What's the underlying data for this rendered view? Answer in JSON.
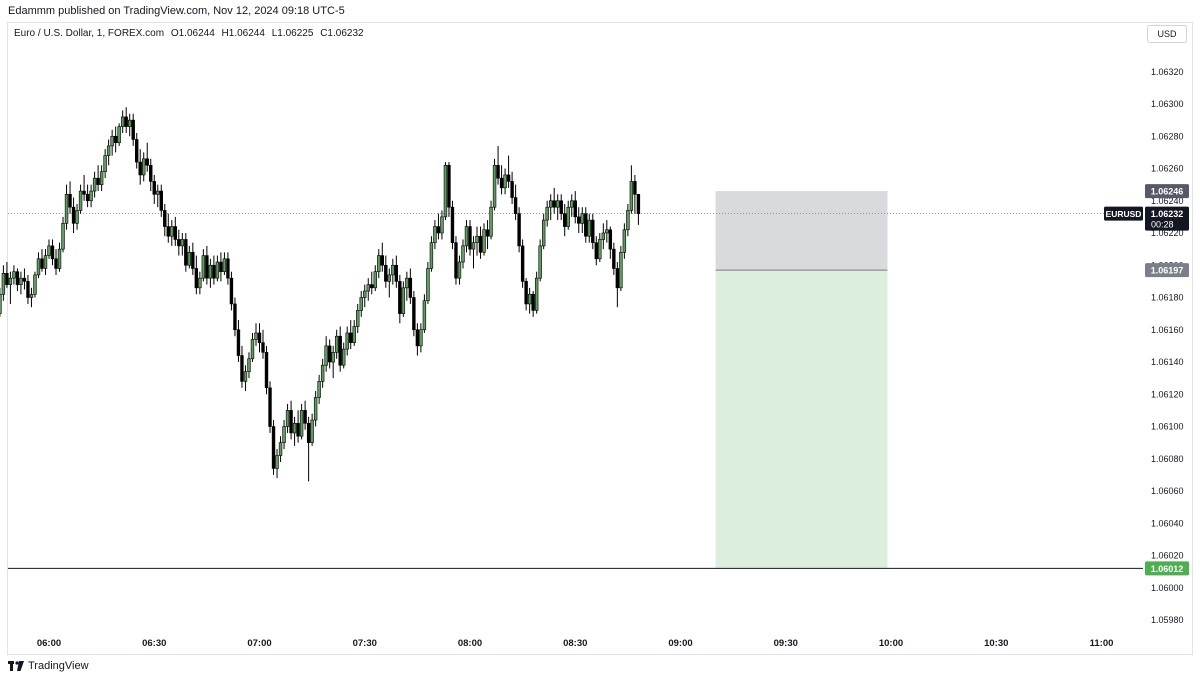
{
  "header": {
    "publisher": "Edammm published on TradingView.com, Nov 12, 2024 09:18 UTC-5"
  },
  "legend": {
    "symbol": "Euro / U.S. Dollar, 1, FOREX.com",
    "o": "O1.06244",
    "h": "H1.06244",
    "l": "L1.06225",
    "c": "C1.06232"
  },
  "currency_button": "USD",
  "brand": {
    "name": "TradingView"
  },
  "chart_data": {
    "type": "candlestick",
    "symbol": "EURUSD",
    "y_ticks": [
      "1.06320",
      "1.06300",
      "1.06280",
      "1.06260",
      "1.06240",
      "1.06220",
      "1.06200",
      "1.06180",
      "1.06160",
      "1.06140",
      "1.06120",
      "1.06100",
      "1.06080",
      "1.06060",
      "1.06040",
      "1.06020",
      "1.06000",
      "1.05980"
    ],
    "x_ticks": [
      "06:00",
      "06:30",
      "07:00",
      "07:30",
      "08:00",
      "08:30",
      "09:00",
      "09:30",
      "10:00",
      "10:30",
      "11:00"
    ],
    "price_labels": {
      "entry": "1.06197",
      "stop": "1.06246",
      "target": "1.06012",
      "last": "1.06232",
      "countdown": "00:28"
    },
    "short_position": {
      "entry": 1.06197,
      "stop": 1.06246,
      "target": 1.06012,
      "start_time": "09:10",
      "end_time": "09:59"
    },
    "candles_start_time": "05:45",
    "candles": [
      [
        1.06172,
        1.06178,
        1.06166,
        1.0617
      ],
      [
        1.0617,
        1.06186,
        1.06168,
        1.06182
      ],
      [
        1.06182,
        1.062,
        1.06178,
        1.06195
      ],
      [
        1.06195,
        1.06202,
        1.06186,
        1.06188
      ],
      [
        1.06188,
        1.06196,
        1.06176,
        1.06192
      ],
      [
        1.06192,
        1.062,
        1.06188,
        1.06196
      ],
      [
        1.06196,
        1.06198,
        1.06184,
        1.06188
      ],
      [
        1.06188,
        1.06196,
        1.06182,
        1.06192
      ],
      [
        1.06192,
        1.06198,
        1.06185,
        1.0619
      ],
      [
        1.0619,
        1.06194,
        1.06176,
        1.0618
      ],
      [
        1.0618,
        1.06186,
        1.06174,
        1.06182
      ],
      [
        1.06182,
        1.06196,
        1.0618,
        1.06194
      ],
      [
        1.06194,
        1.06208,
        1.06192,
        1.06204
      ],
      [
        1.06204,
        1.0621,
        1.06196,
        1.06198
      ],
      [
        1.06198,
        1.0621,
        1.06194,
        1.06206
      ],
      [
        1.06206,
        1.06216,
        1.06204,
        1.06212
      ],
      [
        1.06212,
        1.06216,
        1.062,
        1.06204
      ],
      [
        1.06204,
        1.0621,
        1.06194,
        1.06198
      ],
      [
        1.06198,
        1.06214,
        1.06196,
        1.0621
      ],
      [
        1.0621,
        1.0623,
        1.06208,
        1.06226
      ],
      [
        1.06226,
        1.0625,
        1.06222,
        1.06244
      ],
      [
        1.06244,
        1.06252,
        1.06232,
        1.06236
      ],
      [
        1.06236,
        1.06242,
        1.0622,
        1.06226
      ],
      [
        1.06226,
        1.06238,
        1.06222,
        1.06234
      ],
      [
        1.06234,
        1.0625,
        1.06232,
        1.06246
      ],
      [
        1.06246,
        1.06256,
        1.0624,
        1.06244
      ],
      [
        1.06244,
        1.0625,
        1.06236,
        1.0624
      ],
      [
        1.0624,
        1.0625,
        1.06236,
        1.06246
      ],
      [
        1.06246,
        1.06258,
        1.06242,
        1.06254
      ],
      [
        1.06254,
        1.06262,
        1.06246,
        1.0625
      ],
      [
        1.0625,
        1.06262,
        1.06246,
        1.06258
      ],
      [
        1.06258,
        1.06272,
        1.06254,
        1.06268
      ],
      [
        1.06268,
        1.06278,
        1.06262,
        1.06274
      ],
      [
        1.06274,
        1.06284,
        1.06268,
        1.0628
      ],
      [
        1.0628,
        1.06286,
        1.0627,
        1.06276
      ],
      [
        1.06276,
        1.06288,
        1.06274,
        1.06286
      ],
      [
        1.06286,
        1.06296,
        1.06282,
        1.06292
      ],
      [
        1.06292,
        1.06298,
        1.06282,
        1.06286
      ],
      [
        1.06286,
        1.06294,
        1.0628,
        1.0629
      ],
      [
        1.0629,
        1.06294,
        1.06274,
        1.06278
      ],
      [
        1.06278,
        1.06282,
        1.0626,
        1.06264
      ],
      [
        1.06264,
        1.06272,
        1.0625,
        1.06256
      ],
      [
        1.06256,
        1.0627,
        1.06252,
        1.06266
      ],
      [
        1.06266,
        1.06276,
        1.06258,
        1.06262
      ],
      [
        1.06262,
        1.06266,
        1.06246,
        1.06252
      ],
      [
        1.06252,
        1.06256,
        1.06238,
        1.06244
      ],
      [
        1.06244,
        1.0625,
        1.06236,
        1.06246
      ],
      [
        1.06246,
        1.0625,
        1.0623,
        1.06234
      ],
      [
        1.06234,
        1.06238,
        1.06218,
        1.06224
      ],
      [
        1.06224,
        1.06232,
        1.06214,
        1.06218
      ],
      [
        1.06218,
        1.06228,
        1.06212,
        1.06224
      ],
      [
        1.06224,
        1.0623,
        1.06212,
        1.06216
      ],
      [
        1.06216,
        1.06222,
        1.06206,
        1.06212
      ],
      [
        1.06212,
        1.0622,
        1.06206,
        1.06216
      ],
      [
        1.06216,
        1.0622,
        1.06196,
        1.062
      ],
      [
        1.062,
        1.06212,
        1.06198,
        1.06208
      ],
      [
        1.06208,
        1.06214,
        1.06194,
        1.06198
      ],
      [
        1.06198,
        1.06206,
        1.06182,
        1.06186
      ],
      [
        1.06186,
        1.06196,
        1.06182,
        1.06192
      ],
      [
        1.06192,
        1.0621,
        1.0619,
        1.06206
      ],
      [
        1.06206,
        1.06212,
        1.06188,
        1.06192
      ],
      [
        1.06192,
        1.06204,
        1.06186,
        1.062
      ],
      [
        1.062,
        1.06206,
        1.06188,
        1.06192
      ],
      [
        1.06192,
        1.06206,
        1.0619,
        1.06202
      ],
      [
        1.06202,
        1.06208,
        1.0619,
        1.06196
      ],
      [
        1.06196,
        1.06208,
        1.06194,
        1.06204
      ],
      [
        1.06204,
        1.06208,
        1.06188,
        1.06192
      ],
      [
        1.06192,
        1.06196,
        1.06172,
        1.06176
      ],
      [
        1.06176,
        1.0618,
        1.06156,
        1.0616
      ],
      [
        1.0616,
        1.06166,
        1.0614,
        1.06144
      ],
      [
        1.06144,
        1.0615,
        1.06124,
        1.06128
      ],
      [
        1.06128,
        1.06138,
        1.06122,
        1.06134
      ],
      [
        1.06134,
        1.06146,
        1.0613,
        1.06142
      ],
      [
        1.06142,
        1.06158,
        1.0614,
        1.06154
      ],
      [
        1.06154,
        1.06164,
        1.0615,
        1.06158
      ],
      [
        1.06158,
        1.06164,
        1.06146,
        1.06152
      ],
      [
        1.06152,
        1.0616,
        1.06142,
        1.06146
      ],
      [
        1.06146,
        1.0615,
        1.0612,
        1.06124
      ],
      [
        1.06124,
        1.06128,
        1.06096,
        1.061
      ],
      [
        1.061,
        1.06104,
        1.0607,
        1.06074
      ],
      [
        1.06074,
        1.06086,
        1.06068,
        1.06082
      ],
      [
        1.06082,
        1.06094,
        1.06078,
        1.0609
      ],
      [
        1.0609,
        1.06104,
        1.06086,
        1.061
      ],
      [
        1.061,
        1.06114,
        1.06096,
        1.0611
      ],
      [
        1.0611,
        1.06116,
        1.06092,
        1.06096
      ],
      [
        1.06096,
        1.06106,
        1.06088,
        1.06102
      ],
      [
        1.06102,
        1.0611,
        1.0609,
        1.06094
      ],
      [
        1.06094,
        1.06114,
        1.06092,
        1.0611
      ],
      [
        1.0611,
        1.06116,
        1.06098,
        1.06102
      ],
      [
        1.06102,
        1.06106,
        1.06066,
        1.0609
      ],
      [
        1.0609,
        1.06108,
        1.06088,
        1.06104
      ],
      [
        1.06104,
        1.06122,
        1.061,
        1.06118
      ],
      [
        1.06118,
        1.06132,
        1.06114,
        1.06128
      ],
      [
        1.06128,
        1.06142,
        1.06124,
        1.06138
      ],
      [
        1.06138,
        1.06156,
        1.06134,
        1.0615
      ],
      [
        1.0615,
        1.06154,
        1.06136,
        1.0614
      ],
      [
        1.0614,
        1.0615,
        1.0613,
        1.06146
      ],
      [
        1.06146,
        1.0616,
        1.06142,
        1.06156
      ],
      [
        1.06156,
        1.06162,
        1.06134,
        1.06138
      ],
      [
        1.06138,
        1.06152,
        1.06136,
        1.06148
      ],
      [
        1.06148,
        1.06162,
        1.06144,
        1.06158
      ],
      [
        1.06158,
        1.06166,
        1.06148,
        1.06152
      ],
      [
        1.06152,
        1.06166,
        1.0615,
        1.06162
      ],
      [
        1.06162,
        1.06176,
        1.06158,
        1.06172
      ],
      [
        1.06172,
        1.06184,
        1.06168,
        1.0618
      ],
      [
        1.0618,
        1.06188,
        1.06174,
        1.06184
      ],
      [
        1.06184,
        1.06192,
        1.06178,
        1.06188
      ],
      [
        1.06188,
        1.06196,
        1.06182,
        1.06186
      ],
      [
        1.06186,
        1.062,
        1.06184,
        1.06196
      ],
      [
        1.06196,
        1.0621,
        1.06192,
        1.06206
      ],
      [
        1.06206,
        1.06214,
        1.06196,
        1.062
      ],
      [
        1.062,
        1.06206,
        1.06186,
        1.0619
      ],
      [
        1.0619,
        1.06198,
        1.0618,
        1.06194
      ],
      [
        1.06194,
        1.06204,
        1.06188,
        1.062
      ],
      [
        1.062,
        1.06206,
        1.06186,
        1.0619
      ],
      [
        1.0619,
        1.06194,
        1.06164,
        1.0617
      ],
      [
        1.0617,
        1.0619,
        1.06168,
        1.06186
      ],
      [
        1.06186,
        1.06196,
        1.06178,
        1.06192
      ],
      [
        1.06192,
        1.06198,
        1.06176,
        1.0618
      ],
      [
        1.0618,
        1.06184,
        1.06156,
        1.0616
      ],
      [
        1.0616,
        1.06164,
        1.06144,
        1.0615
      ],
      [
        1.0615,
        1.06164,
        1.06146,
        1.0616
      ],
      [
        1.0616,
        1.06182,
        1.06158,
        1.06178
      ],
      [
        1.06178,
        1.06202,
        1.06176,
        1.06198
      ],
      [
        1.06198,
        1.06218,
        1.06196,
        1.06214
      ],
      [
        1.06214,
        1.06228,
        1.0621,
        1.06224
      ],
      [
        1.06224,
        1.06232,
        1.06216,
        1.0622
      ],
      [
        1.0622,
        1.06234,
        1.06216,
        1.0623
      ],
      [
        1.0623,
        1.06264,
        1.06228,
        1.06262
      ],
      [
        1.06262,
        1.06264,
        1.0623,
        1.06236
      ],
      [
        1.06236,
        1.0624,
        1.0621,
        1.06214
      ],
      [
        1.06214,
        1.06218,
        1.06188,
        1.06192
      ],
      [
        1.06192,
        1.06206,
        1.06188,
        1.06202
      ],
      [
        1.06202,
        1.06216,
        1.06198,
        1.06212
      ],
      [
        1.06212,
        1.06228,
        1.06208,
        1.06224
      ],
      [
        1.06224,
        1.06228,
        1.06206,
        1.0621
      ],
      [
        1.0621,
        1.06218,
        1.06198,
        1.06214
      ],
      [
        1.06214,
        1.06224,
        1.06206,
        1.06218
      ],
      [
        1.06218,
        1.06224,
        1.06204,
        1.06208
      ],
      [
        1.06208,
        1.06226,
        1.06206,
        1.06222
      ],
      [
        1.06222,
        1.06228,
        1.0621,
        1.06218
      ],
      [
        1.06218,
        1.0624,
        1.06216,
        1.06236
      ],
      [
        1.06236,
        1.06266,
        1.06234,
        1.06262
      ],
      [
        1.06262,
        1.06274,
        1.0625,
        1.06254
      ],
      [
        1.06254,
        1.06262,
        1.06244,
        1.06248
      ],
      [
        1.06248,
        1.0626,
        1.06244,
        1.06256
      ],
      [
        1.06256,
        1.06268,
        1.06248,
        1.06252
      ],
      [
        1.06252,
        1.06258,
        1.06238,
        1.06242
      ],
      [
        1.06242,
        1.0625,
        1.06228,
        1.06232
      ],
      [
        1.06232,
        1.06236,
        1.06208,
        1.06212
      ],
      [
        1.06212,
        1.06216,
        1.06186,
        1.0619
      ],
      [
        1.0619,
        1.06192,
        1.06172,
        1.06176
      ],
      [
        1.06176,
        1.06186,
        1.0617,
        1.06182
      ],
      [
        1.06182,
        1.06184,
        1.06168,
        1.06172
      ],
      [
        1.06172,
        1.06196,
        1.0617,
        1.06192
      ],
      [
        1.06192,
        1.06216,
        1.0619,
        1.06212
      ],
      [
        1.06212,
        1.06232,
        1.0621,
        1.06228
      ],
      [
        1.06228,
        1.0624,
        1.06224,
        1.06236
      ],
      [
        1.06236,
        1.06244,
        1.06228,
        1.0624
      ],
      [
        1.0624,
        1.06248,
        1.06232,
        1.06236
      ],
      [
        1.06236,
        1.06244,
        1.06228,
        1.0624
      ],
      [
        1.0624,
        1.06244,
        1.06228,
        1.06232
      ],
      [
        1.06232,
        1.06238,
        1.06218,
        1.06224
      ],
      [
        1.06224,
        1.0624,
        1.06222,
        1.06236
      ],
      [
        1.06236,
        1.06244,
        1.0623,
        1.0624
      ],
      [
        1.0624,
        1.06246,
        1.06226,
        1.0623
      ],
      [
        1.0623,
        1.06236,
        1.0622,
        1.06226
      ],
      [
        1.06226,
        1.06236,
        1.0622,
        1.06232
      ],
      [
        1.06232,
        1.06236,
        1.06214,
        1.06218
      ],
      [
        1.06218,
        1.06232,
        1.06214,
        1.06228
      ],
      [
        1.06228,
        1.06232,
        1.0621,
        1.06214
      ],
      [
        1.06214,
        1.06218,
        1.062,
        1.06204
      ],
      [
        1.06204,
        1.0622,
        1.06202,
        1.06216
      ],
      [
        1.06216,
        1.06226,
        1.0621,
        1.0622
      ],
      [
        1.0622,
        1.06228,
        1.06214,
        1.06222
      ],
      [
        1.06222,
        1.06224,
        1.06204,
        1.0621
      ],
      [
        1.0621,
        1.06214,
        1.06194,
        1.06198
      ],
      [
        1.06198,
        1.06202,
        1.06174,
        1.06186
      ],
      [
        1.06186,
        1.06212,
        1.06184,
        1.06208
      ],
      [
        1.06208,
        1.06226,
        1.06204,
        1.06222
      ],
      [
        1.06222,
        1.06238,
        1.06218,
        1.06234
      ],
      [
        1.06234,
        1.06262,
        1.06232,
        1.06252
      ],
      [
        1.06252,
        1.06256,
        1.06232,
        1.06244
      ],
      [
        1.06244,
        1.06244,
        1.06225,
        1.06232
      ]
    ]
  }
}
